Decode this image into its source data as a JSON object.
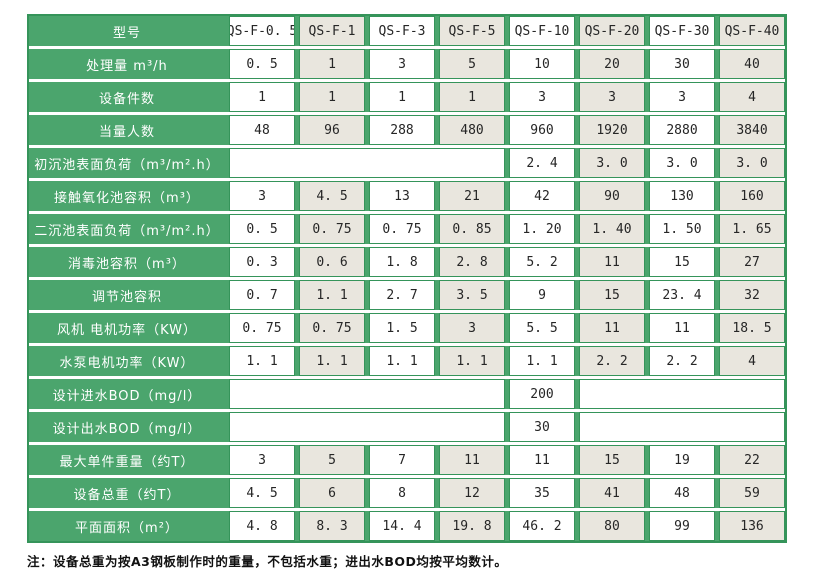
{
  "table": {
    "rows": [
      {
        "label": "型号",
        "cells": [
          "QS-F-0. 5",
          "QS-F-1",
          "QS-F-3",
          "QS-F-5",
          "QS-F-10",
          "QS-F-20",
          "QS-F-30",
          "QS-F-40"
        ]
      },
      {
        "label": "处理量 m³/h",
        "cells": [
          "0. 5",
          "1",
          "3",
          "5",
          "10",
          "20",
          "30",
          "40"
        ]
      },
      {
        "label": "设备件数",
        "cells": [
          "1",
          "1",
          "1",
          "1",
          "3",
          "3",
          "3",
          "4"
        ]
      },
      {
        "label": "当量人数",
        "cells": [
          "48",
          "96",
          "288",
          "480",
          "960",
          "1920",
          "2880",
          "3840"
        ]
      },
      {
        "label": "初沉池表面负荷（m³/m².h）",
        "cells": [
          {
            "span": 4,
            "text": ""
          },
          "2. 4",
          "3. 0",
          "3. 0",
          "3. 0"
        ]
      },
      {
        "label": "接触氧化池容积（m³）",
        "cells": [
          "3",
          "4. 5",
          "13",
          "21",
          "42",
          "90",
          "130",
          "160"
        ]
      },
      {
        "label": "二沉池表面负荷（m³/m².h）",
        "cells": [
          "0. 5",
          "0. 75",
          "0. 75",
          "0. 85",
          "1. 20",
          "1. 40",
          "1. 50",
          "1. 65"
        ]
      },
      {
        "label": "消毒池容积（m³）",
        "cells": [
          "0. 3",
          "0. 6",
          "1. 8",
          "2. 8",
          "5. 2",
          "11",
          "15",
          "27"
        ]
      },
      {
        "label": "调节池容积",
        "cells": [
          "0. 7",
          "1. 1",
          "2. 7",
          "3. 5",
          "9",
          "15",
          "23. 4",
          "32"
        ]
      },
      {
        "label": "风机 电机功率（KW）",
        "cells": [
          "0. 75",
          "0. 75",
          "1. 5",
          "3",
          "5. 5",
          "11",
          "11",
          "18. 5"
        ]
      },
      {
        "label": "水泵电机功率（KW）",
        "cells": [
          "1. 1",
          "1. 1",
          "1. 1",
          "1. 1",
          "1. 1",
          "2. 2",
          "2. 2",
          "4"
        ]
      },
      {
        "label": "设计进水BOD（mg/l）",
        "cells": [
          {
            "span": 4,
            "text": ""
          },
          "200",
          {
            "span": 3,
            "text": ""
          }
        ]
      },
      {
        "label": "设计出水BOD（mg/l）",
        "cells": [
          {
            "span": 4,
            "text": ""
          },
          "30",
          {
            "span": 3,
            "text": ""
          }
        ]
      },
      {
        "label": "最大单件重量（约T）",
        "cells": [
          "3",
          "5",
          "7",
          "11",
          "11",
          "15",
          "19",
          "22"
        ]
      },
      {
        "label": "设备总重（约T）",
        "cells": [
          "4. 5",
          "6",
          "8",
          "12",
          "35",
          "41",
          "48",
          "59"
        ]
      },
      {
        "label": "平面面积（m²）",
        "cells": [
          "4. 8",
          "8. 3",
          "14. 4",
          "19. 8",
          "46. 2",
          "80",
          "99",
          "136"
        ]
      }
    ],
    "note": "注：设备总重为按A3钢板制作时的重量，不包括水重；进出水BOD均按平均数计。"
  },
  "colors": {
    "green": "#4BA56D",
    "border_green": "#35945A",
    "alt_cell": "#E9E6DE",
    "cell_text": "#262626",
    "label_text": "#FFFFFF"
  }
}
